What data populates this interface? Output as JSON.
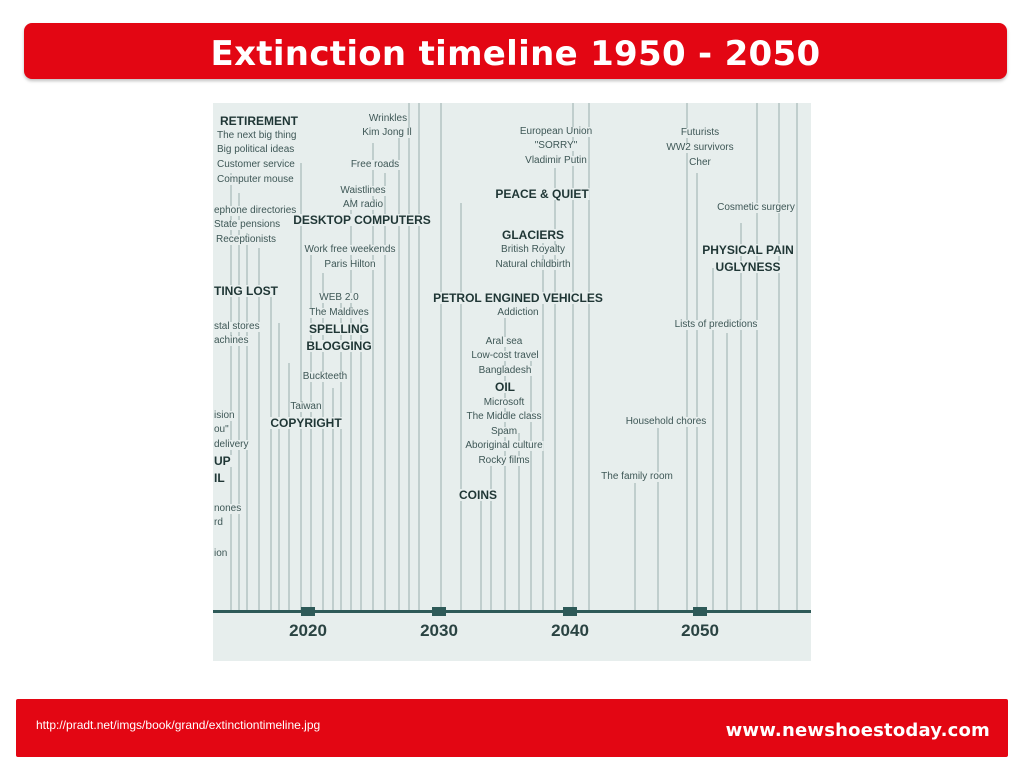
{
  "slide": {
    "title": "Extinction timeline 1950 - 2050",
    "source_url": "http://pradt.net/imgs/book/grand/extinctiontimeline.jpg",
    "brand": "www.newshoestoday.com",
    "accent_color": "#e30613"
  },
  "timeline": {
    "years": [
      "2020",
      "2030",
      "2040",
      "2050"
    ],
    "labels": [
      "RETIREMENT",
      "The next big thing",
      "Big political ideas",
      "Customer service",
      "Computer mouse",
      "ephone directories",
      "State pensions",
      "Receptionists",
      "TING LOST",
      "stal stores",
      "achines",
      "ision",
      "ou\"",
      "delivery",
      "UP",
      "IL",
      "nones",
      "rd",
      "ion",
      "Wrinkles",
      "Kim Jong Il",
      "Free roads",
      "Waistlines",
      "AM radio",
      "DESKTOP COMPUTERS",
      "Work free weekends",
      "Paris Hilton",
      "WEB 2.0",
      "The Maldives",
      "SPELLING",
      "BLOGGING",
      "Buckteeth",
      "Taiwan",
      "COPYRIGHT",
      "European Union",
      "\"SORRY\"",
      "Vladimir Putin",
      "PEACE & QUIET",
      "GLACIERS",
      "British Royalty",
      "Natural childbirth",
      "PETROL ENGINED VEHICLES",
      "Addiction",
      "Aral sea",
      "Low-cost travel",
      "Bangladesh",
      "OIL",
      "Microsoft",
      "The Middle class",
      "Spam",
      "Aboriginal culture",
      "Rocky films",
      "COINS",
      "Futurists",
      "WW2 survivors",
      "Cher",
      "Cosmetic surgery",
      "PHYSICAL PAIN",
      "UGLYNESS",
      "Lists of predictions",
      "Household chores",
      "The family room"
    ]
  }
}
